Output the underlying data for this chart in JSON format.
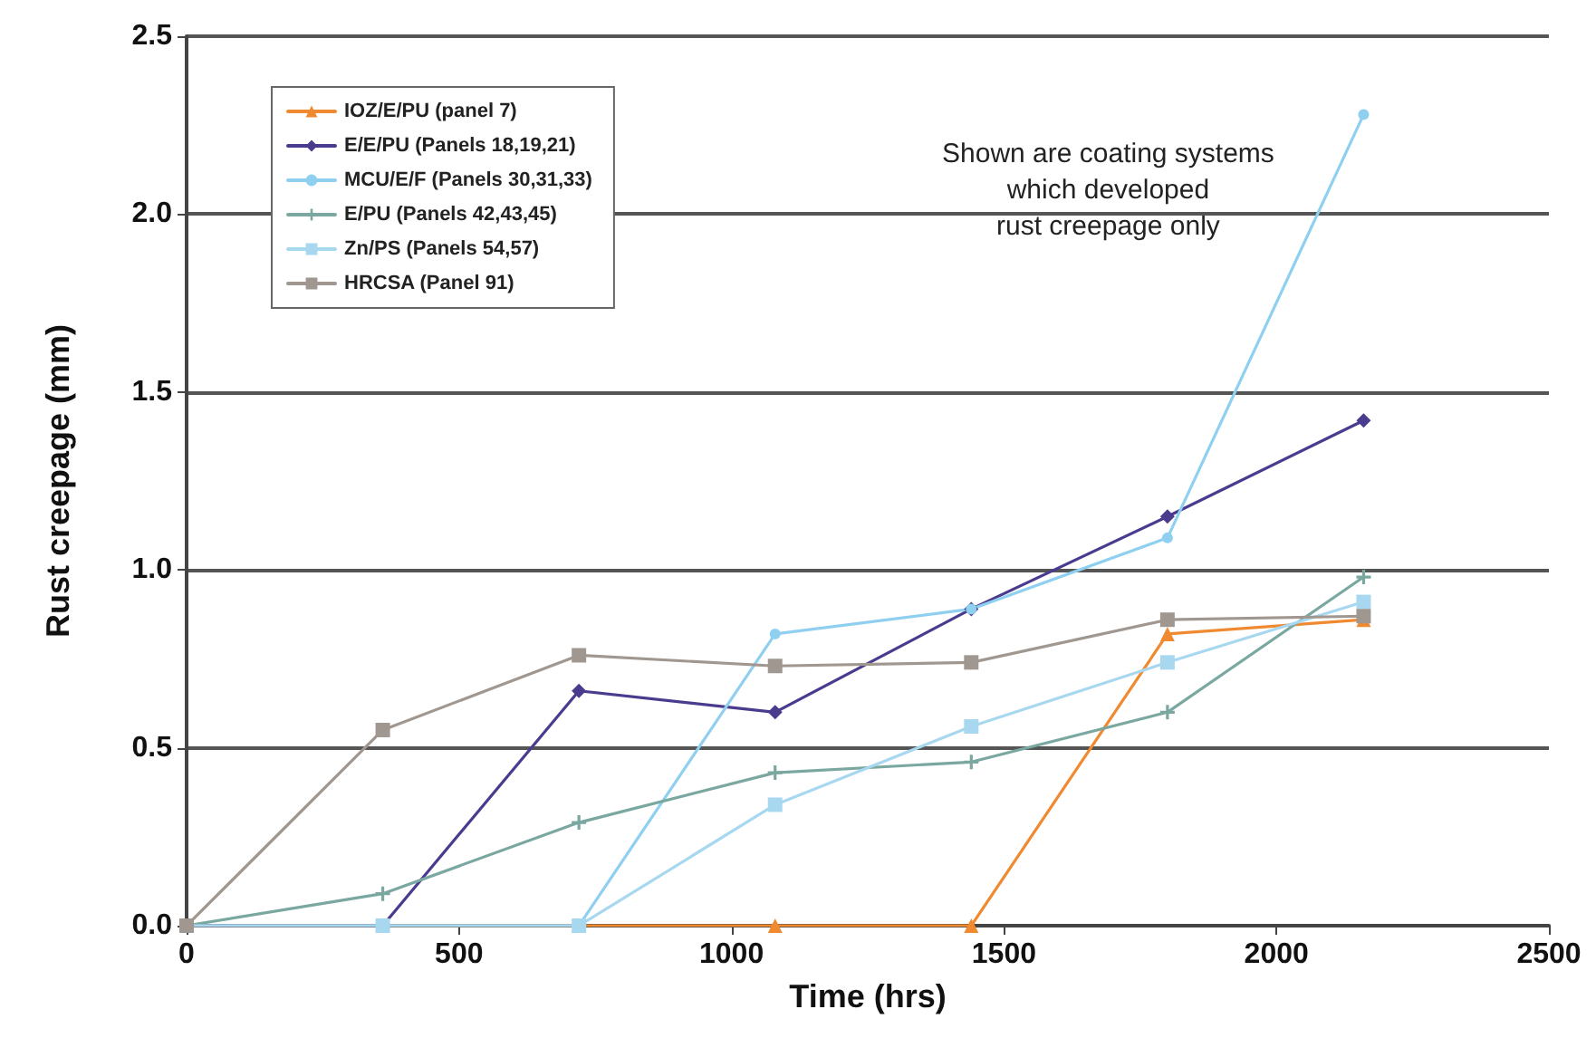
{
  "chart_data": {
    "type": "line",
    "xlabel": "Time (hrs)",
    "ylabel": "Rust creepage (mm)",
    "x": [
      0,
      360,
      720,
      1080,
      1440,
      1800,
      2160
    ],
    "series": [
      {
        "name": "IOZ/E/PU (panel 7)",
        "color": "#f08a30",
        "marker": "triangle",
        "values": [
          0,
          0,
          0,
          0,
          0,
          0.82,
          0.86
        ]
      },
      {
        "name": "E/E/PU (Panels 18,19,21)",
        "color": "#4b3b8f",
        "marker": "diamond",
        "values": [
          0,
          0,
          0.66,
          0.6,
          0.89,
          1.15,
          1.42
        ]
      },
      {
        "name": "MCU/E/F (Panels 30,31,33)",
        "color": "#8fd0f0",
        "marker": "circle",
        "values": [
          0,
          0,
          0,
          0.82,
          0.89,
          1.09,
          2.28
        ]
      },
      {
        "name": "E/PU (Panels 42,43,45)",
        "color": "#7aa8a0",
        "marker": "cross",
        "values": [
          0,
          0.09,
          0.29,
          0.43,
          0.46,
          0.6,
          0.98
        ]
      },
      {
        "name": "Zn/PS (Panels 54,57)",
        "color": "#a8d8f0",
        "marker": "square",
        "values": [
          0,
          0,
          0,
          0.34,
          0.56,
          0.74,
          0.91
        ]
      },
      {
        "name": "HRCSA (Panel 91)",
        "color": "#a09890",
        "marker": "square",
        "values": [
          0,
          0.55,
          0.76,
          0.73,
          0.74,
          0.86,
          0.87
        ]
      }
    ],
    "xlim": [
      0,
      2500
    ],
    "xticks": [
      0,
      500,
      1000,
      1500,
      2000,
      2500
    ],
    "ylim": [
      0,
      2.5
    ],
    "yticks": [
      {
        "value": 0,
        "label": "0.0"
      },
      {
        "value": 0.5,
        "label": "0.5"
      },
      {
        "value": 1,
        "label": "1.0"
      },
      {
        "value": 1.5,
        "label": "1.5"
      },
      {
        "value": 2,
        "label": "2.0"
      },
      {
        "value": 2.5,
        "label": "2.5"
      }
    ],
    "annotations": [
      "Shown are coating systems\nwhich developed\nrust creepage only"
    ],
    "grid": "y",
    "legend": "top left",
    "line_style": "solid"
  }
}
